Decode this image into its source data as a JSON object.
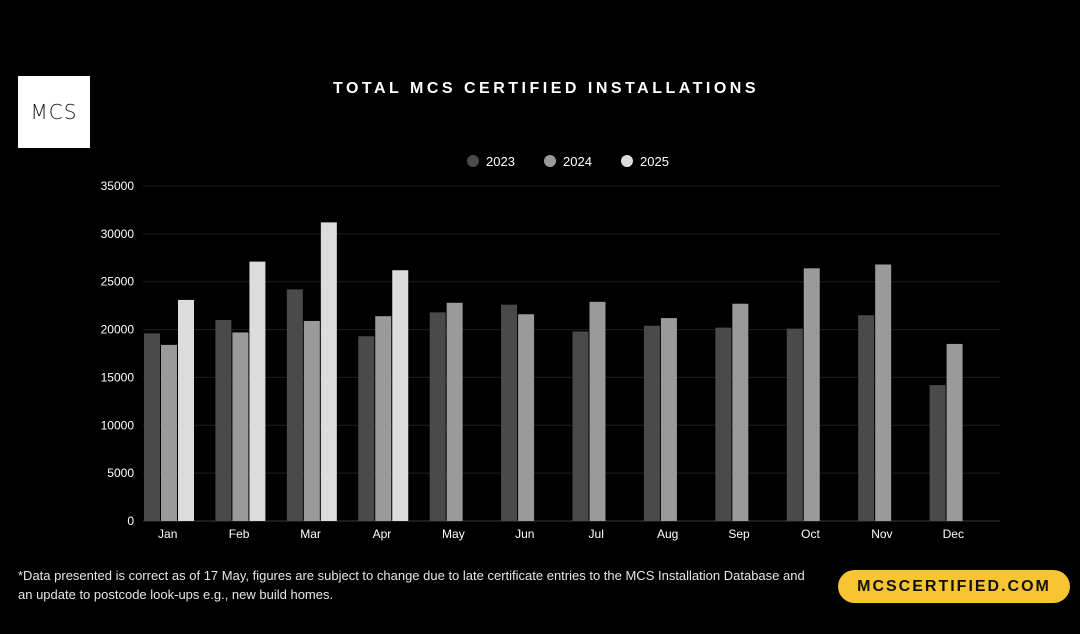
{
  "logo": {
    "text": "MCS"
  },
  "footnote": "*Data presented is correct as of 17 May, figures are subject to change due to late certificate entries to the MCS Installation Database and an update to postcode look-ups e.g., new build homes.",
  "url_pill": {
    "text": "MCSCERTIFIED.COM",
    "color": "#f7c531"
  },
  "chart_data": {
    "type": "bar",
    "title": "TOTAL MCS CERTIFIED INSTALLATIONS",
    "xlabel": "",
    "ylabel": "",
    "ylim": [
      0,
      35000
    ],
    "yticks": [
      0,
      5000,
      10000,
      15000,
      20000,
      25000,
      30000,
      35000
    ],
    "grid": true,
    "legend_position": "top-center",
    "categories": [
      "Jan",
      "Feb",
      "Mar",
      "Apr",
      "May",
      "Jun",
      "Jul",
      "Aug",
      "Sep",
      "Oct",
      "Nov",
      "Dec"
    ],
    "series": [
      {
        "name": "2023",
        "color": "#4a4a4a",
        "values": [
          19600,
          21000,
          24200,
          19300,
          21800,
          22600,
          19800,
          20400,
          20200,
          20100,
          21500,
          14200
        ]
      },
      {
        "name": "2024",
        "color": "#9a9a9a",
        "values": [
          18400,
          19700,
          20900,
          21400,
          22800,
          21600,
          22900,
          21200,
          22700,
          26400,
          26800,
          18500
        ]
      },
      {
        "name": "2025",
        "color": "#dcdcdc",
        "values": [
          23100,
          27100,
          31200,
          26200,
          null,
          null,
          null,
          null,
          null,
          null,
          null,
          null
        ]
      }
    ]
  }
}
